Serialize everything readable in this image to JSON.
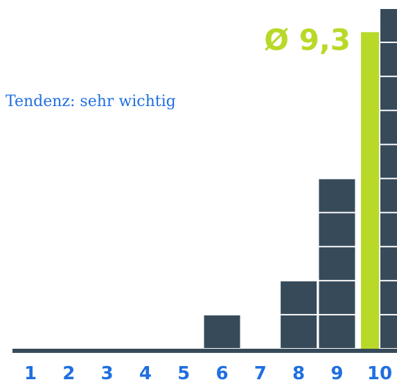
{
  "chart_data": {
    "type": "stacked-squares",
    "categories": [
      "1",
      "2",
      "3",
      "4",
      "5",
      "6",
      "7",
      "8",
      "9",
      "10"
    ],
    "values": [
      0,
      0,
      0,
      0,
      0,
      1,
      0,
      2,
      5,
      10
    ],
    "color": "#364a5a",
    "ylim": [
      0,
      10
    ],
    "average": 9.3,
    "average_label": "Ø 9,3",
    "average_color": "#b8d928",
    "annotation": "Tendenz: sehr wichtig",
    "label_color": "#1f6fe0"
  }
}
